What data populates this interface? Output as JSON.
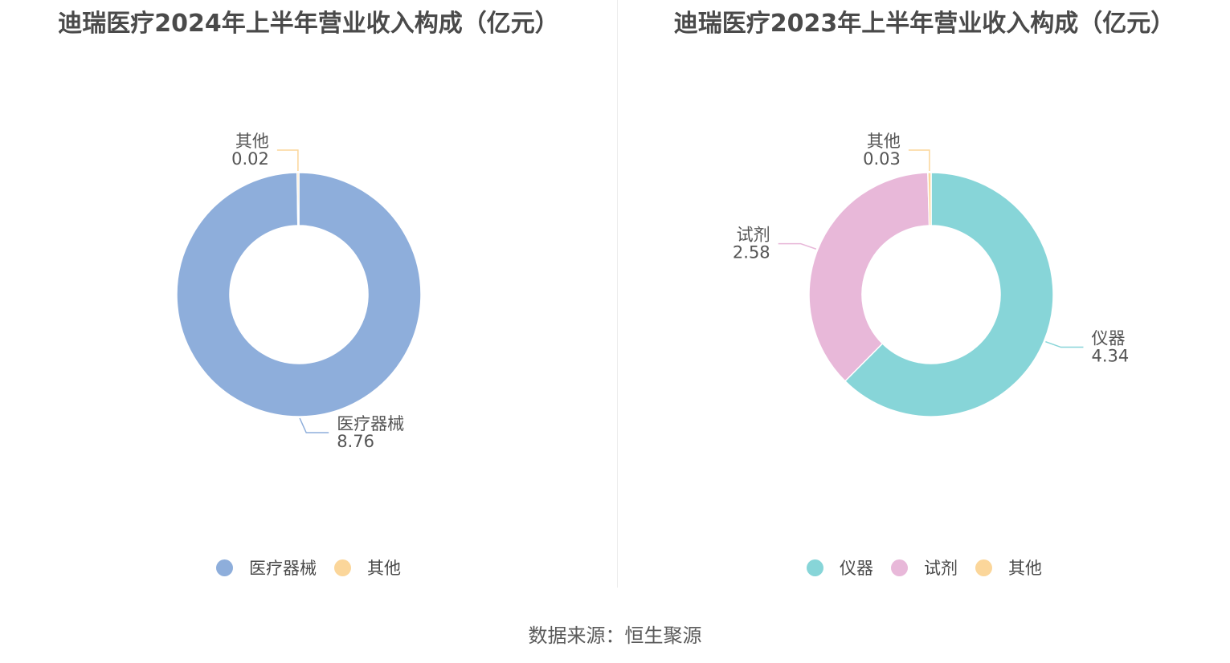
{
  "chart_data": [
    {
      "type": "pie",
      "title": "迪瑞医疗2024年上半年营业收入构成（亿元）",
      "categories": [
        "医疗器械",
        "其他"
      ],
      "values": [
        8.76,
        0.02
      ],
      "value_labels": [
        "8.76",
        "0.02"
      ],
      "colors": [
        "#8eaedb",
        "#fbd69a"
      ],
      "legend": "bottom-center",
      "donut": true
    },
    {
      "type": "pie",
      "title": "迪瑞医疗2023年上半年营业收入构成（亿元）",
      "categories": [
        "仪器",
        "试剂",
        "其他"
      ],
      "values": [
        4.34,
        2.58,
        0.03
      ],
      "value_labels": [
        "4.34",
        "2.58",
        "0.03"
      ],
      "colors": [
        "#87d5d8",
        "#e8b8d9",
        "#fbd69a"
      ],
      "legend": "bottom-center",
      "donut": true
    }
  ],
  "source": "数据来源：恒生聚源"
}
